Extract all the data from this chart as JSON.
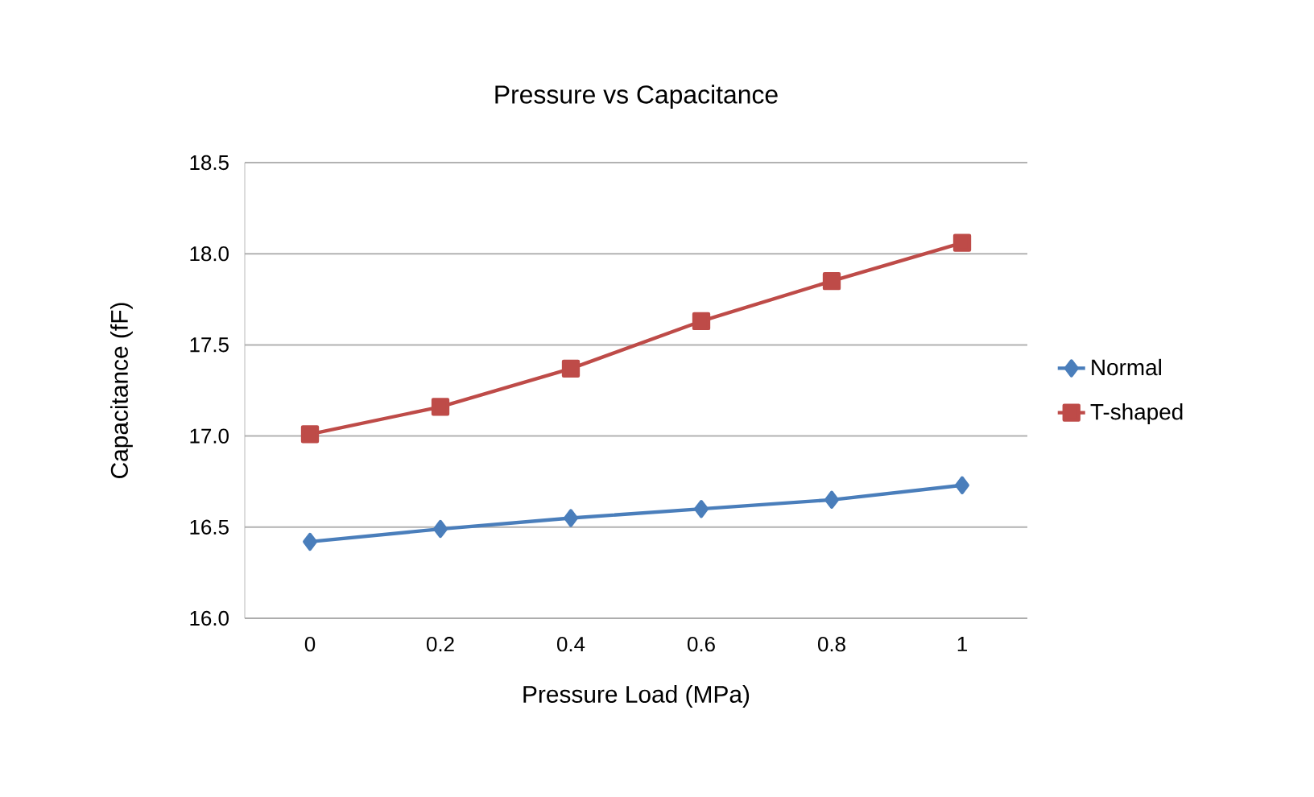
{
  "chart_data": {
    "type": "line",
    "title": "Pressure vs Capacitance",
    "xlabel": "Pressure Load (MPa)",
    "ylabel": "Capacitance (fF)",
    "categories": [
      "0",
      "0.2",
      "0.4",
      "0.6",
      "0.8",
      "1"
    ],
    "series": [
      {
        "name": "Normal",
        "color": "#4a7ebb",
        "marker": "diamond",
        "values": [
          16.42,
          16.49,
          16.55,
          16.6,
          16.65,
          16.73
        ]
      },
      {
        "name": "T-shaped",
        "color": "#be4b48",
        "marker": "square",
        "values": [
          17.01,
          17.16,
          17.37,
          17.63,
          17.85,
          18.06
        ]
      }
    ],
    "ylim": [
      16,
      18.5
    ],
    "yticks": [
      {
        "value": 16,
        "label": "16.0"
      },
      {
        "value": 16.5,
        "label": "16.5"
      },
      {
        "value": 17,
        "label": "17.0"
      },
      {
        "value": 17.5,
        "label": "17.5"
      },
      {
        "value": 18,
        "label": "18.0"
      },
      {
        "value": 18.5,
        "label": "18.5"
      }
    ],
    "grid": "y",
    "legend": "right",
    "line_style": "solid"
  }
}
